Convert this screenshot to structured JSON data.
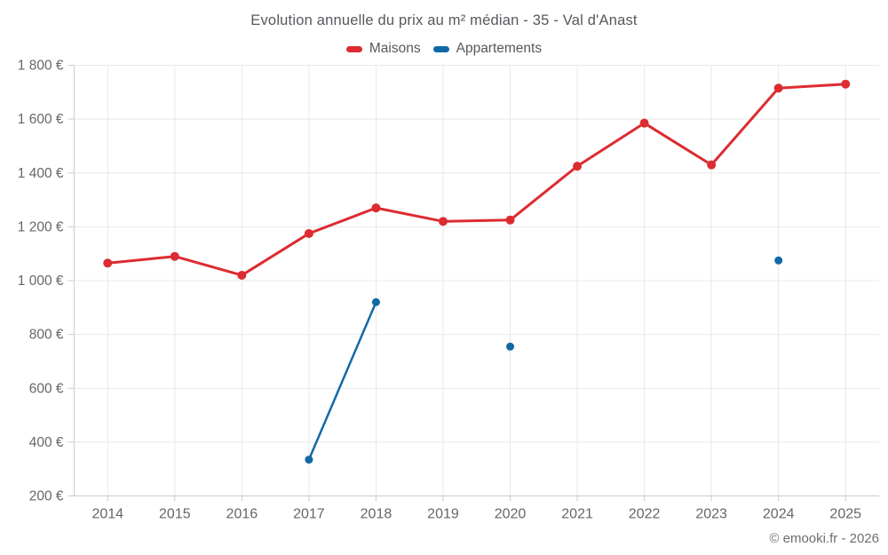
{
  "title": "Evolution annuelle du prix au m² médian - 35 - Val d'Anast",
  "footer_credit": "© emooki.fr - 2026",
  "colors": {
    "maisons": "#dc2c31",
    "appartements": "#1169a5",
    "grid": "#e8e8e8",
    "axis": "#cccccc",
    "tick": "#cccccc",
    "axis_label": "#666666",
    "title_text": "#55585c"
  },
  "chart_data": {
    "type": "line",
    "title": "Evolution annuelle du prix au m² médian - 35 - Val d'Anast",
    "categories": [
      "2014",
      "2015",
      "2016",
      "2017",
      "2018",
      "2019",
      "2020",
      "2021",
      "2022",
      "2023",
      "2024",
      "2025"
    ],
    "series": [
      {
        "name": "Maisons",
        "color": "#dc2c31",
        "marker_radius": 5,
        "line_width": 3,
        "values": [
          1065,
          1090,
          1020,
          1175,
          1270,
          1220,
          1225,
          1425,
          1585,
          1430,
          1715,
          1730
        ]
      },
      {
        "name": "Appartements",
        "color": "#1169a5",
        "marker_radius": 4.5,
        "line_width": 2.5,
        "values": [
          null,
          null,
          null,
          335,
          920,
          null,
          755,
          null,
          null,
          null,
          1075,
          null
        ]
      }
    ],
    "ylim": [
      200,
      1800
    ],
    "ytick_step": 200,
    "ytick_labels": [
      "200 €",
      "400 €",
      "600 €",
      "800 €",
      "1 000 €",
      "1 200 €",
      "1 400 €",
      "1 600 €",
      "1 800 €"
    ],
    "xlabel": "",
    "ylabel": "",
    "grid": true,
    "legend_position": "top"
  }
}
